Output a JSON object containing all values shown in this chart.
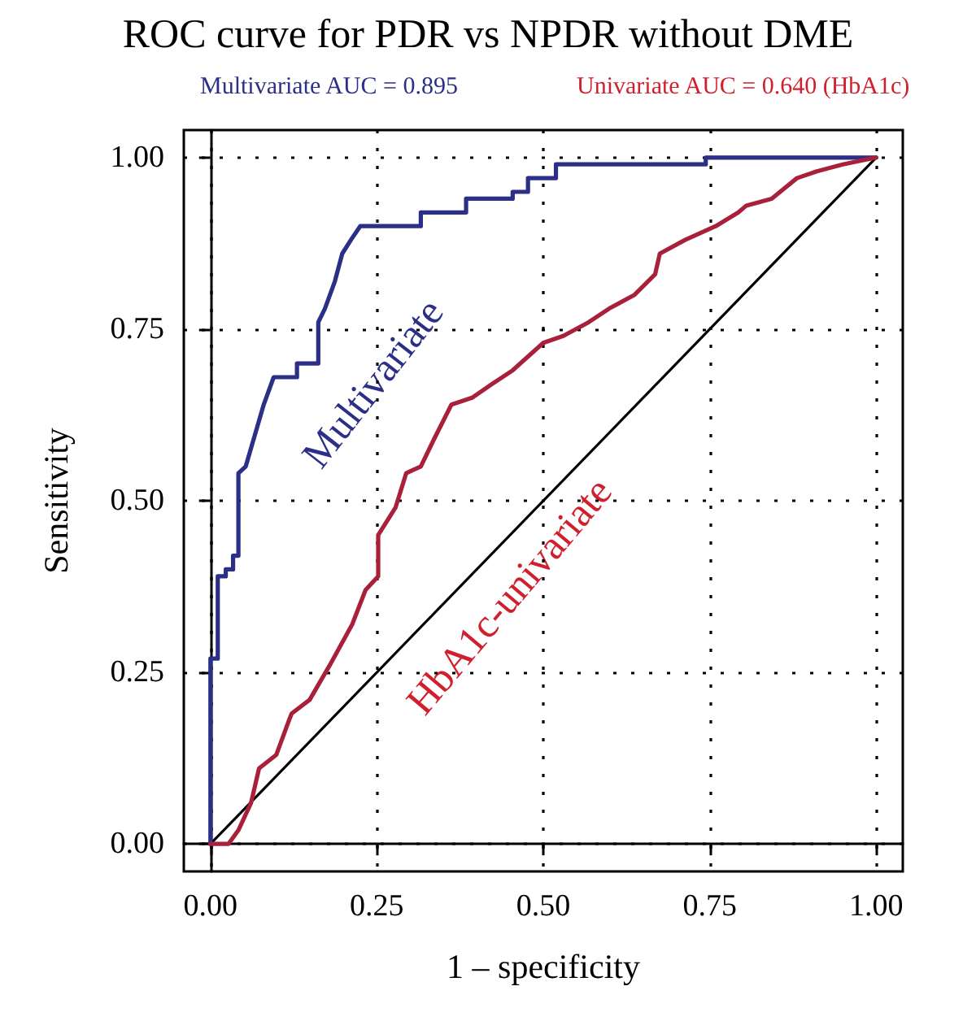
{
  "chart_data": {
    "type": "line",
    "title": "ROC curve for PDR vs NPDR without DME",
    "xlabel": "1 – specificity",
    "ylabel": "Sensitivity",
    "annotations": [
      "Multivariate AUC = 0.895",
      "Univariate AUC = 0.640 (HbA1c)"
    ],
    "xlim": [
      -0.04,
      1.04
    ],
    "ylim": [
      -0.04,
      1.04
    ],
    "xticks": [
      {
        "value": 0,
        "label": "0.00"
      },
      {
        "value": 0.25,
        "label": "0.25"
      },
      {
        "value": 0.5,
        "label": "0.50"
      },
      {
        "value": 0.75,
        "label": "0.75"
      },
      {
        "value": 1,
        "label": "1.00"
      }
    ],
    "yticks": [
      {
        "value": 0,
        "label": "0.00"
      },
      {
        "value": 0.25,
        "label": "0.25"
      },
      {
        "value": 0.5,
        "label": "0.50"
      },
      {
        "value": 0.75,
        "label": "0.75"
      },
      {
        "value": 1,
        "label": "1.00"
      }
    ],
    "grid": true,
    "legend": false,
    "marker": "none",
    "line_style": "solid",
    "series": [
      {
        "name": "Multivariate",
        "color": "#2b2f86",
        "x": [
          0,
          0,
          0.011,
          0.011,
          0.023,
          0.023,
          0.034,
          0.034,
          0.042,
          0.042,
          0.053,
          0.08,
          0.095,
          0.13,
          0.13,
          0.162,
          0.162,
          0.172,
          0.187,
          0.198,
          0.211,
          0.225,
          0.316,
          0.316,
          0.384,
          0.384,
          0.454,
          0.454,
          0.477,
          0.477,
          0.519,
          0.519,
          0.744,
          0.744,
          1
        ],
        "values": [
          0,
          0.27,
          0.27,
          0.39,
          0.39,
          0.4,
          0.4,
          0.42,
          0.42,
          0.54,
          0.55,
          0.64,
          0.68,
          0.68,
          0.7,
          0.7,
          0.76,
          0.78,
          0.82,
          0.86,
          0.88,
          0.9,
          0.9,
          0.92,
          0.92,
          0.94,
          0.94,
          0.95,
          0.95,
          0.97,
          0.97,
          0.99,
          0.99,
          1,
          1
        ]
      },
      {
        "name": "HbA1c-univariate",
        "color": "#a8203a",
        "x": [
          0,
          0.027,
          0.042,
          0.061,
          0.073,
          0.099,
          0.118,
          0.122,
          0.149,
          0.179,
          0.213,
          0.233,
          0.252,
          0.252,
          0.278,
          0.294,
          0.316,
          0.336,
          0.362,
          0.393,
          0.423,
          0.454,
          0.5,
          0.53,
          0.568,
          0.599,
          0.637,
          0.668,
          0.675,
          0.713,
          0.759,
          0.793,
          0.805,
          0.843,
          0.881,
          0.911,
          0.95,
          1
        ],
        "values": [
          0,
          0,
          0.02,
          0.06,
          0.11,
          0.13,
          0.18,
          0.19,
          0.21,
          0.26,
          0.32,
          0.37,
          0.39,
          0.45,
          0.49,
          0.54,
          0.55,
          0.59,
          0.64,
          0.65,
          0.67,
          0.69,
          0.73,
          0.74,
          0.76,
          0.78,
          0.8,
          0.83,
          0.86,
          0.88,
          0.9,
          0.92,
          0.93,
          0.94,
          0.97,
          0.98,
          0.99,
          1
        ]
      },
      {
        "color": "#000000",
        "x": [
          0,
          1
        ],
        "values": [
          0,
          1
        ]
      }
    ]
  }
}
